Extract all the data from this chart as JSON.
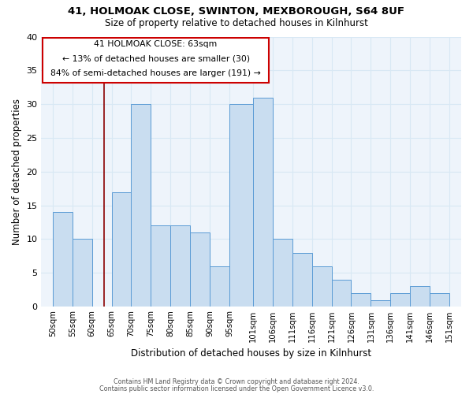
{
  "title1": "41, HOLMOAK CLOSE, SWINTON, MEXBOROUGH, S64 8UF",
  "title2": "Size of property relative to detached houses in Kilnhurst",
  "xlabel": "Distribution of detached houses by size in Kilnhurst",
  "ylabel": "Number of detached properties",
  "annotation_line1": "41 HOLMOAK CLOSE: 63sqm",
  "annotation_line2": "← 13% of detached houses are smaller (30)",
  "annotation_line3": "84% of semi-detached houses are larger (191) →",
  "bar_left_edges": [
    50,
    55,
    60,
    65,
    70,
    75,
    80,
    85,
    90,
    95,
    101,
    106,
    111,
    116,
    121,
    126,
    131,
    136,
    141,
    146
  ],
  "bar_heights": [
    14,
    10,
    0,
    17,
    30,
    12,
    12,
    11,
    6,
    30,
    31,
    10,
    8,
    6,
    4,
    2,
    1,
    2,
    3,
    2
  ],
  "bar_widths": [
    5,
    5,
    5,
    5,
    5,
    5,
    5,
    5,
    5,
    6,
    5,
    5,
    5,
    5,
    5,
    5,
    5,
    5,
    5,
    5
  ],
  "bar_color": "#c9ddf0",
  "bar_edge_color": "#5b9bd5",
  "marker_x": 63,
  "marker_color": "#8b0000",
  "tick_labels": [
    "50sqm",
    "55sqm",
    "60sqm",
    "65sqm",
    "70sqm",
    "75sqm",
    "80sqm",
    "85sqm",
    "90sqm",
    "95sqm",
    "101sqm",
    "106sqm",
    "111sqm",
    "116sqm",
    "121sqm",
    "126sqm",
    "131sqm",
    "136sqm",
    "141sqm",
    "146sqm",
    "151sqm"
  ],
  "tick_positions": [
    50,
    55,
    60,
    65,
    70,
    75,
    80,
    85,
    90,
    95,
    101,
    106,
    111,
    116,
    121,
    126,
    131,
    136,
    141,
    146,
    151
  ],
  "ylim": [
    0,
    40
  ],
  "xlim": [
    47,
    154
  ],
  "grid_color": "#d8e8f4",
  "bg_color": "#eef4fb",
  "footer_line1": "Contains HM Land Registry data © Crown copyright and database right 2024.",
  "footer_line2": "Contains public sector information licensed under the Open Government Licence v3.0.",
  "annotation_box_color": "#cc0000"
}
